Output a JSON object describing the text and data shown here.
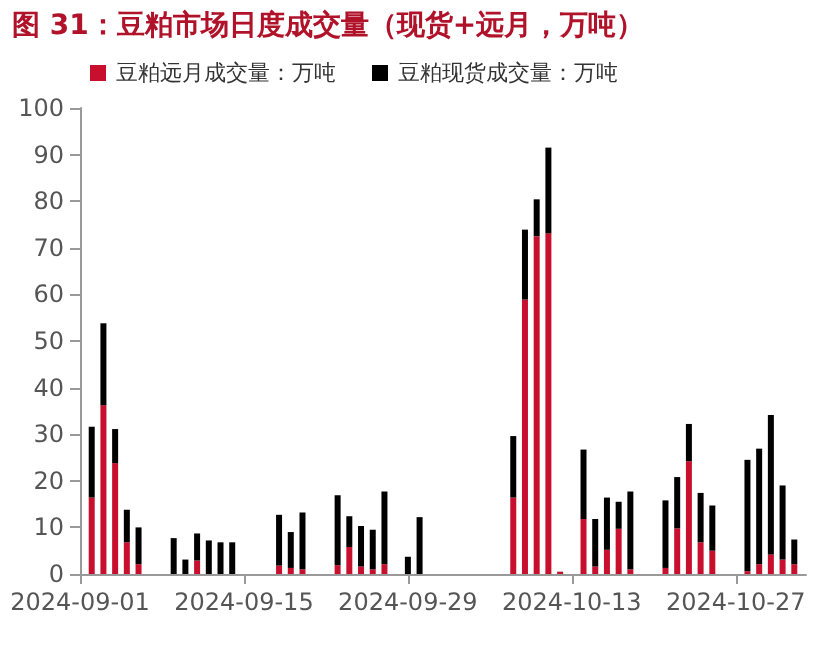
{
  "chart_data": {
    "type": "bar",
    "title": "图 31：豆粕市场日度成交量（现货+远月，万吨）",
    "stacked": true,
    "x": [
      "2024-09-02",
      "2024-09-03",
      "2024-09-04",
      "2024-09-05",
      "2024-09-06",
      "2024-09-09",
      "2024-09-10",
      "2024-09-11",
      "2024-09-12",
      "2024-09-13",
      "2024-09-14",
      "2024-09-18",
      "2024-09-19",
      "2024-09-20",
      "2024-09-23",
      "2024-09-24",
      "2024-09-25",
      "2024-09-26",
      "2024-09-27",
      "2024-09-29",
      "2024-09-30",
      "2024-10-08",
      "2024-10-09",
      "2024-10-10",
      "2024-10-11",
      "2024-10-12",
      "2024-10-14",
      "2024-10-15",
      "2024-10-16",
      "2024-10-17",
      "2024-10-18",
      "2024-10-21",
      "2024-10-22",
      "2024-10-23",
      "2024-10-24",
      "2024-10-25",
      "2024-10-28",
      "2024-10-29",
      "2024-10-30",
      "2024-10-31",
      "2024-11-01"
    ],
    "series": [
      {
        "name": "豆粕远月成交量：万吨",
        "color": "#c8102e",
        "values": [
          16.4,
          36.2,
          23.8,
          6.8,
          2.1,
          0,
          0,
          2.9,
          0,
          0,
          0,
          1.8,
          1.3,
          1.0,
          1.9,
          5.8,
          1.6,
          1.0,
          2.1,
          0,
          0,
          16.4,
          58.9,
          72.5,
          73.1,
          0.5,
          11.8,
          1.6,
          5.2,
          9.7,
          1.0,
          1.3,
          9.8,
          24.2,
          6.8,
          5.0,
          0.6,
          2.1,
          4.2,
          3.1,
          2.1
        ]
      },
      {
        "name": "豆粕现货成交量：万吨",
        "color": "#000000",
        "values": [
          15.2,
          17.6,
          7.3,
          7.0,
          7.9,
          7.7,
          3.1,
          5.8,
          7.2,
          6.8,
          6.8,
          10.9,
          7.7,
          12.2,
          15.0,
          6.6,
          8.7,
          8.5,
          15.6,
          3.7,
          12.2,
          13.2,
          15.0,
          7.9,
          18.4,
          0,
          14.9,
          10.2,
          11.2,
          5.8,
          16.7,
          14.5,
          11.0,
          8.0,
          10.6,
          9.7,
          23.9,
          24.8,
          29.9,
          15.9,
          5.3
        ]
      }
    ],
    "xlim": [
      "2024-09-01",
      "2024-11-02"
    ],
    "xticks": [
      "2024-09-01",
      "2024-09-15",
      "2024-09-29",
      "2024-10-13",
      "2024-10-27"
    ],
    "ylim": [
      0,
      100
    ],
    "yticks": [
      0,
      10,
      20,
      30,
      40,
      50,
      60,
      70,
      80,
      90,
      100
    ],
    "grid": false,
    "legend": "top left"
  }
}
